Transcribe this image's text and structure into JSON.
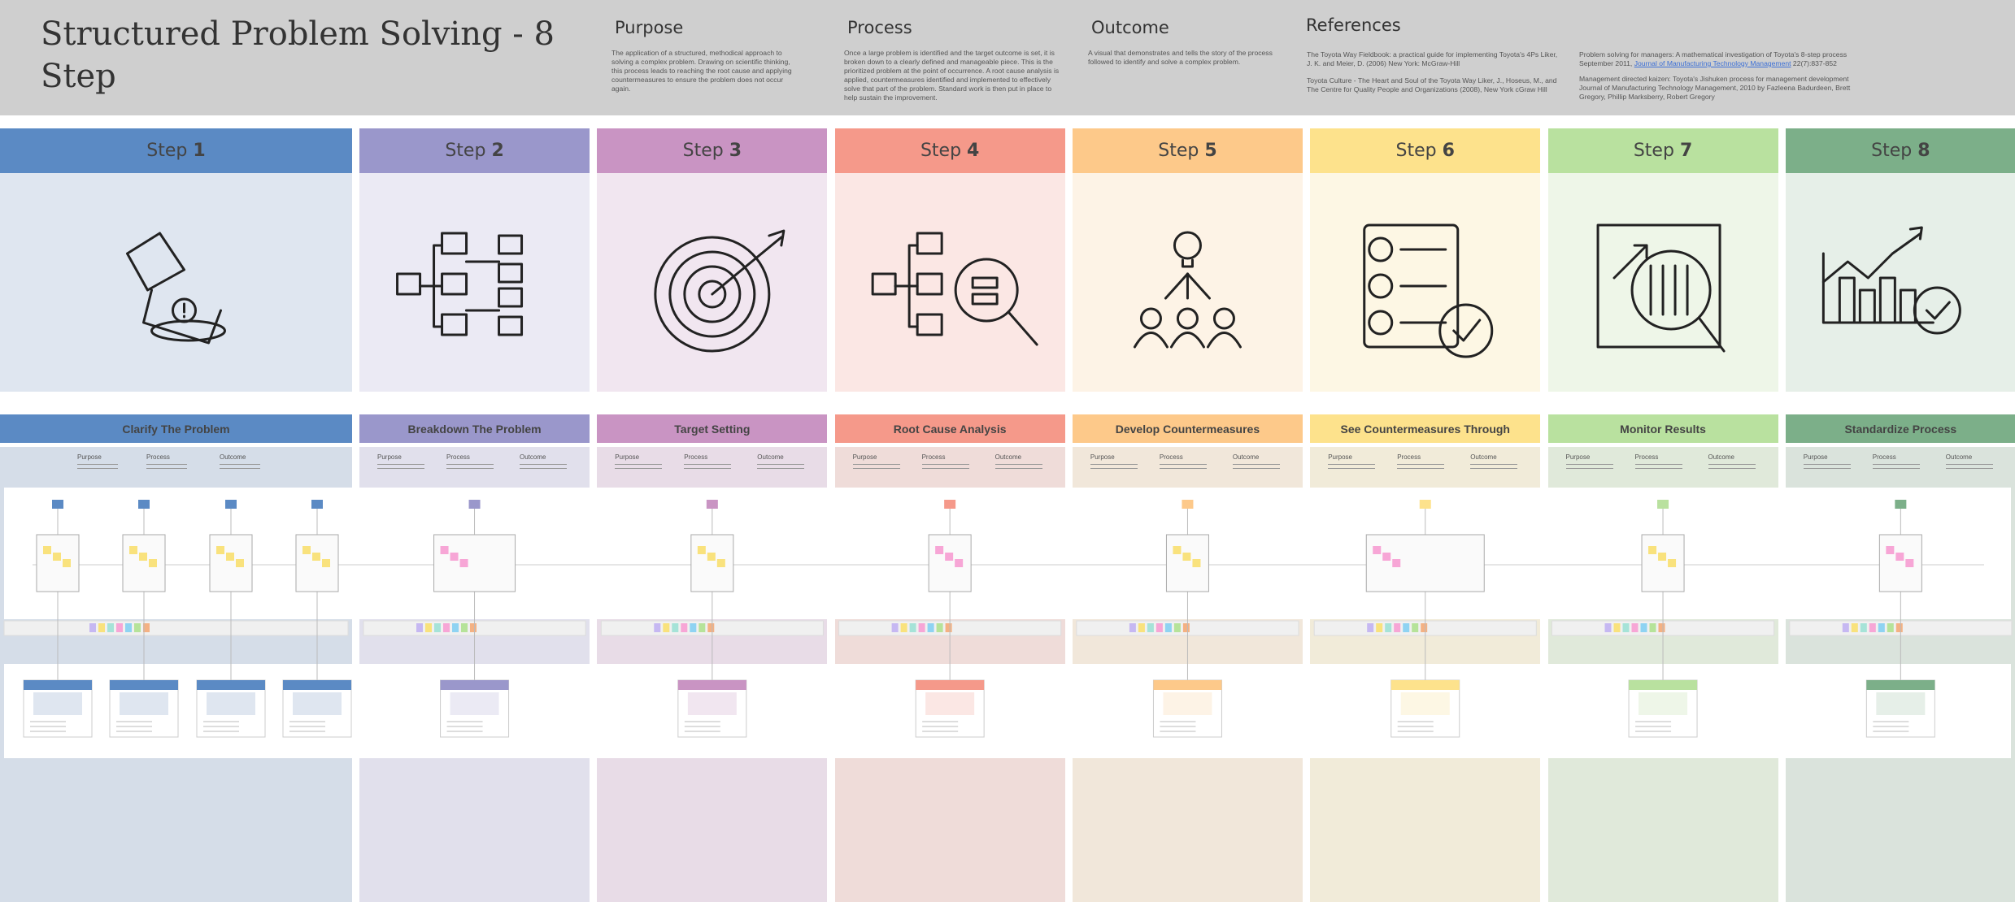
{
  "header": {
    "title": "Structured Problem Solving - 8 Step",
    "purpose": {
      "heading": "Purpose",
      "text": "The application of a structured, methodical approach to solving a complex problem. Drawing on scientific thinking, this process leads to reaching the root cause and applying countermeasures to ensure the problem does not occur again."
    },
    "process": {
      "heading": "Process",
      "text": "Once a large problem is identified and the target outcome is set, it is broken down to a clearly defined and manageable piece. This is the prioritized problem at the point of occurrence. A root cause analysis is applied, countermeasures identified and implemented to effectively solve that part of the problem. Standard work is then put in place to help sustain the improvement."
    },
    "outcome": {
      "heading": "Outcome",
      "text": "A visual that demonstrates and tells the story of the process followed to identify and solve a complex problem."
    },
    "references": {
      "heading": "References",
      "items": [
        {
          "text": "The Toyota Way Fieldbook: a practical guide for implementing Toyota's 4Ps Liker, J. K. and Meier, D. (2006) New York: McGraw-Hill"
        },
        {
          "text": "Toyota Culture - The Heart and Soul of the Toyota Way Liker, J., Hoseus, M., and The Centre for Quality People and Organizations (2008), New York cGraw Hill"
        },
        {
          "text": "Problem solving for managers: A mathematical investigation of Toyota's 8-step process September 2011,",
          "link": "Journal of Manufacturing Technology Management",
          "after": "22(7):837-852"
        },
        {
          "text": "Management directed kaizen: Toyota's Jishuken process for management development Journal of Manufacturing Technology Management, 2010 by Fazleena Badurdeen, Brett Gregory, Phillip Marksberry, Robert Gregory"
        }
      ]
    }
  },
  "step_word": "Step",
  "section_labels": [
    "Purpose",
    "Process",
    "Outcome"
  ],
  "steps": [
    {
      "number": "1",
      "name": "Clarify The Problem",
      "color": "#5b8ac4",
      "panel": "#dfe6f0",
      "band": "#d5dde8"
    },
    {
      "number": "2",
      "name": "Breakdown The Problem",
      "color": "#9a97cb",
      "panel": "#ebeaf4",
      "band": "#e1e0ec"
    },
    {
      "number": "3",
      "name": "Target Setting",
      "color": "#c994c3",
      "panel": "#f1e6f0",
      "band": "#e8dce7"
    },
    {
      "number": "4",
      "name": "Root Cause Analysis",
      "color": "#f5998a",
      "panel": "#fbe7e4",
      "band": "#efdcd9"
    },
    {
      "number": "5",
      "name": "Develop Countermeasures",
      "color": "#fdc98a",
      "panel": "#fdf3e6",
      "band": "#f1e7da"
    },
    {
      "number": "6",
      "name": "See Countermeasures Through",
      "color": "#fde28c",
      "panel": "#fdf7e4",
      "band": "#f1ebd9"
    },
    {
      "number": "7",
      "name": "Monitor Results",
      "color": "#b9e19f",
      "panel": "#eef6e8",
      "band": "#e0e9da"
    },
    {
      "number": "8",
      "name": "Standardize Process",
      "color": "#7caf89",
      "panel": "#e6efe8",
      "band": "#dae3dc"
    }
  ]
}
